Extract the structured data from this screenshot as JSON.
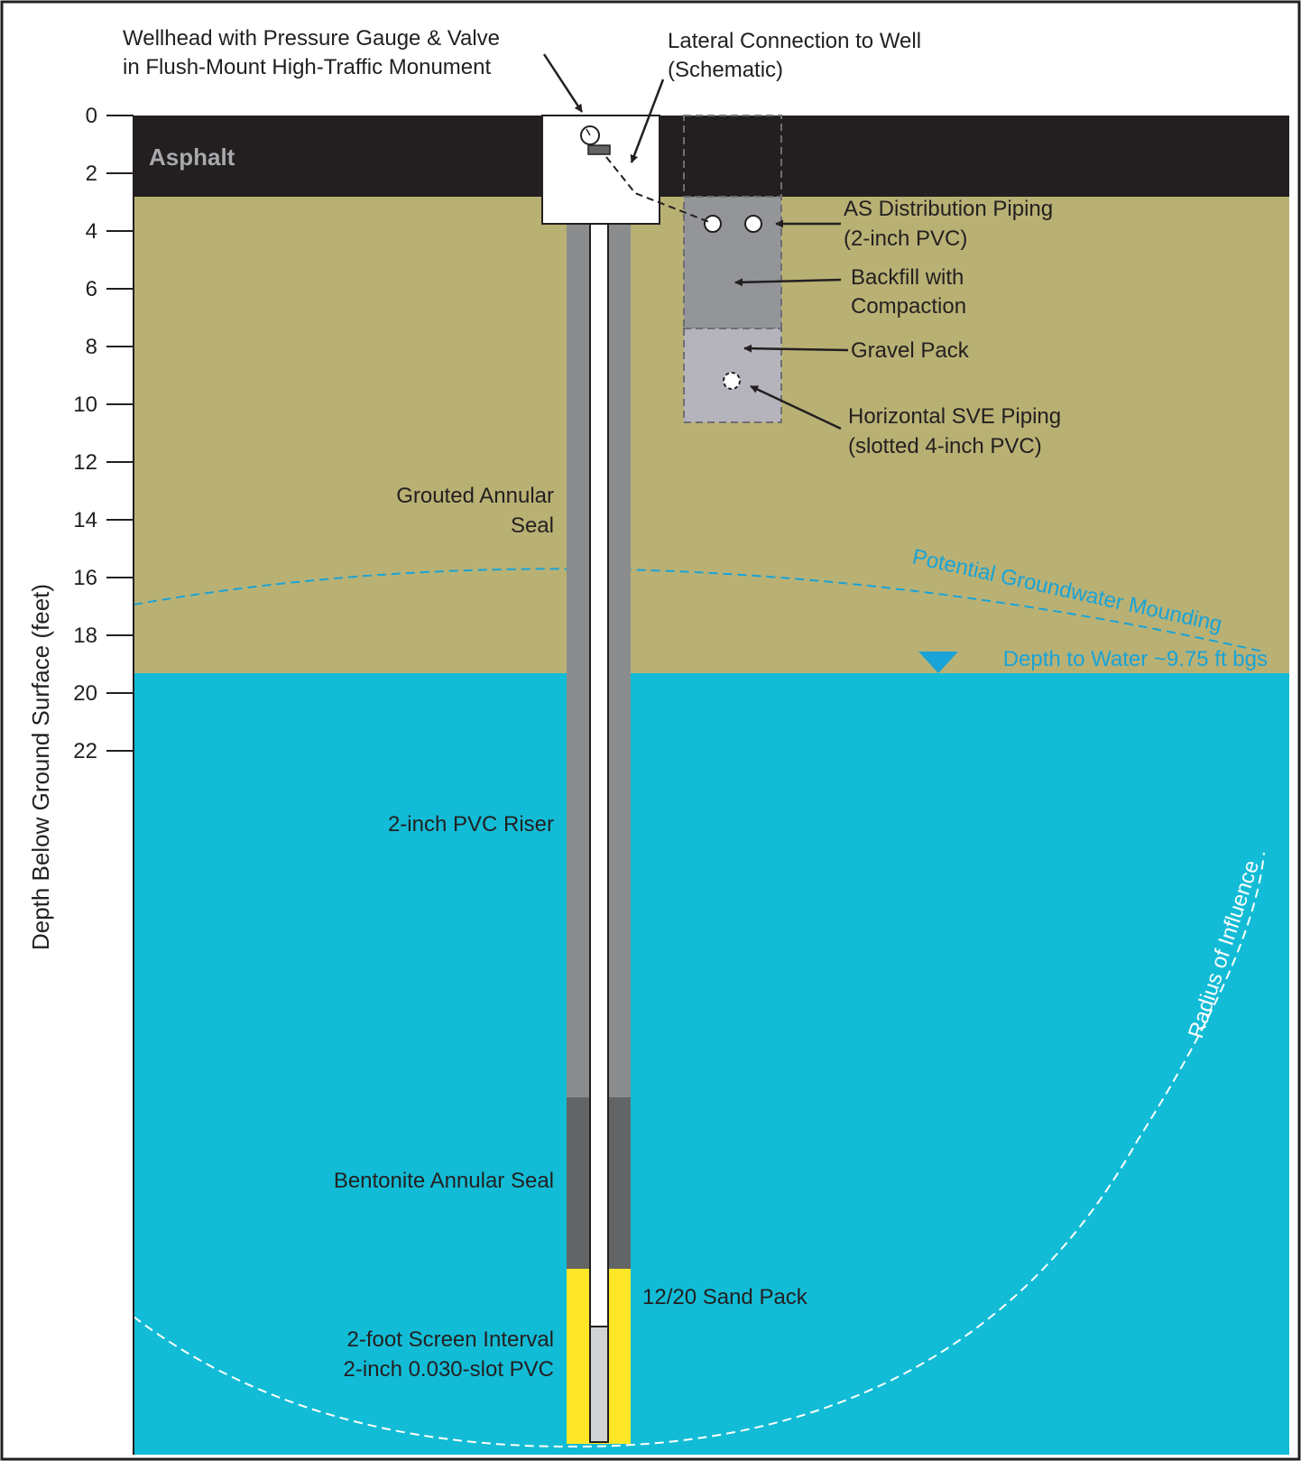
{
  "axis": {
    "label": "Depth Below Ground Surface (feet)",
    "ticks": [
      "0",
      "2",
      "4",
      "6",
      "8",
      "10",
      "12",
      "14",
      "16",
      "18",
      "20",
      "22"
    ]
  },
  "layers": {
    "asphalt": "Asphalt"
  },
  "labels": {
    "wellhead_1": "Wellhead with Pressure Gauge & Valve",
    "wellhead_2": "in Flush-Mount High-Traffic Monument",
    "lateral_1": "Lateral Connection to Well",
    "lateral_2": "(Schematic)",
    "as_piping_1": "AS Distribution Piping",
    "as_piping_2": "(2-inch PVC)",
    "backfill_1": "Backfill with",
    "backfill_2": "Compaction",
    "gravel": "Gravel Pack",
    "sve_1": "Horizontal SVE Piping",
    "sve_2": "(slotted 4-inch PVC)",
    "grout_1": "Grouted Annular",
    "grout_2": "Seal",
    "mounding": "Potential Groundwater Mounding",
    "water_depth": "Depth to Water ~9.75 ft bgs",
    "riser": "2-inch PVC Riser",
    "radius": "Radius of Influence",
    "bentonite": "Bentonite Annular Seal",
    "sand": "12/20 Sand Pack",
    "screen_1": "2-foot Screen Interval",
    "screen_2": "2-inch 0.030-slot PVC"
  },
  "colors": {
    "asphalt": "#231f20",
    "soil": "#b9b174",
    "water": "#12bcd6",
    "grout": "#8a8c8e",
    "bentonite": "#636466",
    "sand": "#fde726",
    "backfill": "#939598",
    "gravel": "#b5b3bb",
    "accent_blue": "#1aa3d6"
  }
}
